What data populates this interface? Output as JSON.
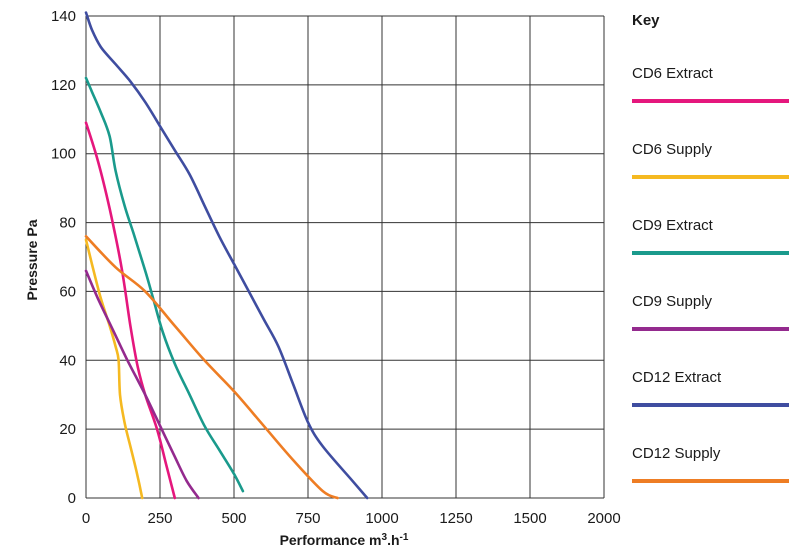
{
  "chart_data": {
    "type": "line",
    "xlabel": "Performance m³.h⁻¹",
    "ylabel": "Pressure Pa",
    "xlim": [
      0,
      2000
    ],
    "ylim": [
      0,
      140
    ],
    "xticks": [
      0,
      250,
      500,
      750,
      1000,
      1250,
      1500,
      2000
    ],
    "xtick_labels": [
      "0",
      "250",
      "500",
      "750",
      "1000",
      "1250",
      "1500",
      "2000"
    ],
    "yticks": [
      0,
      20,
      40,
      60,
      80,
      100,
      120,
      140
    ],
    "ytick_labels": [
      "0",
      "20",
      "40",
      "60",
      "80",
      "100",
      "120",
      "140"
    ],
    "grid": true,
    "legend_title": "Key",
    "legend_position": "right",
    "series": [
      {
        "name": "CD6 Extract",
        "color": "#e5177d",
        "points": [
          [
            0,
            109
          ],
          [
            40,
            98
          ],
          [
            80,
            84
          ],
          [
            120,
            67
          ],
          [
            150,
            50
          ],
          [
            175,
            38
          ],
          [
            200,
            30
          ],
          [
            240,
            20
          ],
          [
            270,
            10
          ],
          [
            300,
            0
          ]
        ]
      },
      {
        "name": "CD6 Supply",
        "color": "#f5b921",
        "points": [
          [
            0,
            75
          ],
          [
            20,
            68
          ],
          [
            50,
            58
          ],
          [
            80,
            50
          ],
          [
            100,
            44
          ],
          [
            110,
            40
          ],
          [
            115,
            30
          ],
          [
            130,
            22
          ],
          [
            150,
            15
          ],
          [
            170,
            8
          ],
          [
            190,
            0
          ]
        ]
      },
      {
        "name": "CD9 Extract",
        "color": "#1a9a8c",
        "points": [
          [
            0,
            122
          ],
          [
            20,
            118
          ],
          [
            50,
            112
          ],
          [
            80,
            105
          ],
          [
            100,
            95
          ],
          [
            130,
            85
          ],
          [
            160,
            77
          ],
          [
            200,
            66
          ],
          [
            230,
            57
          ],
          [
            260,
            48
          ],
          [
            300,
            39
          ],
          [
            350,
            30
          ],
          [
            400,
            21
          ],
          [
            450,
            14
          ],
          [
            500,
            7
          ],
          [
            530,
            2
          ]
        ]
      },
      {
        "name": "CD9 Supply",
        "color": "#942a8e",
        "points": [
          [
            0,
            66
          ],
          [
            40,
            58
          ],
          [
            90,
            49
          ],
          [
            140,
            40
          ],
          [
            200,
            30
          ],
          [
            250,
            21
          ],
          [
            300,
            12
          ],
          [
            340,
            5
          ],
          [
            380,
            0
          ]
        ]
      },
      {
        "name": "CD12 Extract",
        "color": "#3f4da0",
        "points": [
          [
            0,
            141
          ],
          [
            20,
            136
          ],
          [
            50,
            131
          ],
          [
            100,
            126
          ],
          [
            150,
            121
          ],
          [
            200,
            115
          ],
          [
            250,
            108
          ],
          [
            300,
            101
          ],
          [
            350,
            94
          ],
          [
            400,
            85
          ],
          [
            450,
            76
          ],
          [
            500,
            68
          ],
          [
            550,
            60
          ],
          [
            600,
            52
          ],
          [
            650,
            44
          ],
          [
            700,
            33
          ],
          [
            750,
            22
          ],
          [
            800,
            15
          ],
          [
            900,
            5
          ],
          [
            950,
            0
          ]
        ]
      },
      {
        "name": "CD12 Supply",
        "color": "#ee7d24",
        "points": [
          [
            0,
            76
          ],
          [
            100,
            67
          ],
          [
            200,
            60
          ],
          [
            300,
            50
          ],
          [
            400,
            40
          ],
          [
            500,
            31
          ],
          [
            600,
            21
          ],
          [
            700,
            11
          ],
          [
            800,
            2
          ],
          [
            850,
            0
          ]
        ]
      }
    ]
  }
}
